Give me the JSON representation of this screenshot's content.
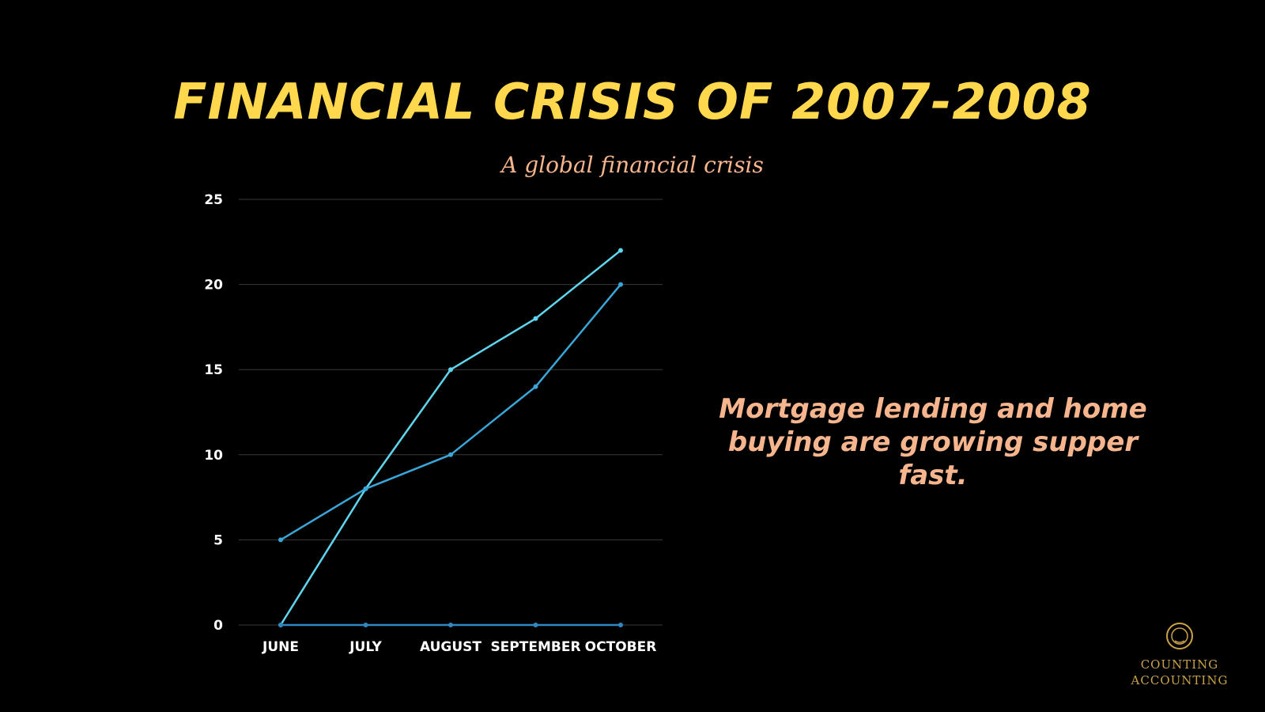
{
  "slide": {
    "title": "FINANCIAL CRISIS OF 2007-2008",
    "subtitle": "A global financial crisis",
    "note": "Mortgage lending and home buying are growing supper fast.",
    "logo": {
      "line1": "COUNTING",
      "line2": "ACCOUNTING",
      "icon": "laurel-wreath-icon"
    }
  },
  "colors": {
    "background": "#000000",
    "title": "#FFD84D",
    "subtitle": "#F7B58E",
    "note": "#F7B58E",
    "axis_text": "#FFFFFF",
    "gridline": "#3A3A3A",
    "series_1": "#5FD6EE",
    "series_2": "#3AA6D8",
    "series_3": "#2F88C2",
    "logo": "#C9A24A"
  },
  "chart_data": {
    "type": "line",
    "categories": [
      "JUNE",
      "JULY",
      "AUGUST",
      "SEPTEMBER",
      "OCTOBER"
    ],
    "series": [
      {
        "values": [
          0,
          8,
          15,
          18,
          22
        ]
      },
      {
        "values": [
          5,
          8,
          10,
          14,
          20
        ]
      },
      {
        "values": [
          0,
          0,
          0,
          0,
          0
        ]
      }
    ],
    "yticks": [
      0,
      5,
      10,
      15,
      20,
      25
    ],
    "ylim": [
      0,
      25
    ],
    "grid": true,
    "legend": "none"
  }
}
